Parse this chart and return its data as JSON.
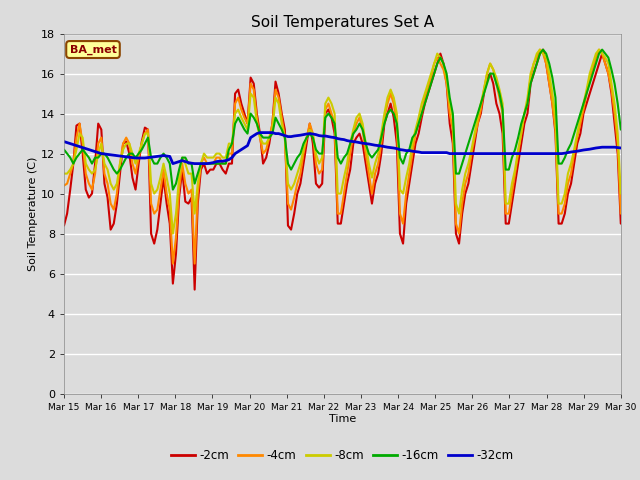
{
  "title": "Soil Temperatures Set A",
  "xlabel": "Time",
  "ylabel": "Soil Temperature (C)",
  "ylim": [
    0,
    18
  ],
  "yticks": [
    0,
    2,
    4,
    6,
    8,
    10,
    12,
    14,
    16,
    18
  ],
  "station_label": "BA_met",
  "bg_color": "#dcdcdc",
  "legend_labels": [
    "-2cm",
    "-4cm",
    "-8cm",
    "-16cm",
    "-32cm"
  ],
  "legend_colors": [
    "#cc0000",
    "#ff8800",
    "#cccc00",
    "#00aa00",
    "#0000cc"
  ],
  "line_widths": [
    1.5,
    1.5,
    1.5,
    1.5,
    2.0
  ],
  "xtick_labels": [
    "Mar 15",
    "Mar 16",
    "Mar 17",
    "Mar 18",
    "Mar 19",
    "Mar 20",
    "Mar 21",
    "Mar 22",
    "Mar 23",
    "Mar 24",
    "Mar 25",
    "Mar 26",
    "Mar 27",
    "Mar 28",
    "Mar 29",
    "Mar 30"
  ],
  "series_2cm": [
    8.4,
    9.0,
    10.2,
    11.5,
    13.4,
    13.5,
    12.0,
    10.2,
    9.8,
    10.0,
    11.5,
    13.5,
    13.2,
    10.5,
    9.8,
    8.2,
    8.5,
    9.5,
    11.0,
    12.5,
    12.6,
    12.0,
    10.8,
    10.2,
    11.5,
    12.6,
    13.3,
    13.2,
    8.0,
    7.5,
    8.2,
    9.5,
    10.8,
    9.5,
    8.5,
    5.5,
    7.0,
    9.8,
    11.2,
    9.6,
    9.5,
    9.8,
    5.2,
    9.5,
    11.2,
    11.5,
    11.0,
    11.2,
    11.2,
    11.5,
    11.5,
    11.2,
    11.0,
    11.5,
    11.5,
    15.0,
    15.2,
    14.5,
    14.0,
    13.5,
    15.8,
    15.5,
    14.0,
    13.0,
    11.5,
    11.8,
    12.5,
    13.5,
    15.6,
    15.0,
    14.0,
    13.2,
    8.4,
    8.2,
    9.0,
    10.0,
    10.5,
    11.5,
    12.5,
    13.5,
    12.5,
    10.5,
    10.3,
    10.5,
    14.0,
    14.2,
    13.8,
    13.0,
    8.5,
    8.5,
    9.5,
    10.5,
    11.2,
    12.5,
    12.8,
    13.0,
    12.5,
    11.5,
    10.5,
    9.5,
    10.5,
    11.0,
    12.0,
    13.5,
    14.0,
    14.5,
    13.8,
    12.5,
    8.0,
    7.5,
    9.5,
    10.5,
    11.5,
    12.5,
    13.0,
    13.8,
    14.5,
    15.0,
    15.5,
    16.0,
    16.5,
    17.0,
    16.5,
    15.5,
    13.5,
    12.5,
    8.0,
    7.5,
    9.0,
    10.0,
    10.5,
    11.5,
    12.5,
    13.5,
    14.0,
    15.0,
    15.8,
    16.0,
    15.5,
    14.5,
    14.0,
    13.0,
    8.5,
    8.5,
    9.5,
    10.5,
    11.5,
    12.5,
    13.5,
    14.0,
    15.5,
    16.0,
    16.5,
    17.0,
    17.2,
    16.5,
    15.5,
    14.5,
    13.0,
    8.5,
    8.5,
    9.0,
    10.0,
    10.5,
    11.5,
    12.5,
    13.0,
    14.0,
    14.5,
    15.0,
    15.5,
    16.0,
    16.5,
    17.0,
    16.5,
    16.0,
    15.0,
    13.5,
    12.0,
    8.5
  ],
  "series_4cm": [
    10.4,
    10.5,
    11.0,
    11.5,
    12.8,
    13.5,
    12.5,
    11.0,
    10.5,
    10.2,
    11.0,
    12.5,
    12.8,
    11.0,
    10.5,
    9.5,
    9.2,
    10.0,
    11.5,
    12.5,
    12.8,
    12.5,
    11.5,
    11.0,
    11.8,
    12.5,
    13.0,
    13.2,
    9.5,
    9.0,
    9.2,
    10.2,
    11.2,
    10.0,
    9.2,
    6.5,
    7.8,
    10.2,
    11.5,
    10.5,
    10.0,
    10.2,
    6.5,
    10.0,
    11.5,
    11.8,
    11.5,
    11.5,
    11.5,
    11.8,
    11.8,
    11.5,
    11.5,
    12.0,
    12.0,
    14.5,
    14.8,
    14.2,
    13.8,
    13.5,
    15.5,
    15.2,
    13.8,
    12.8,
    12.0,
    12.2,
    12.8,
    13.5,
    15.2,
    14.8,
    13.8,
    12.8,
    9.5,
    9.2,
    9.8,
    10.5,
    11.0,
    12.0,
    12.8,
    13.5,
    13.0,
    11.5,
    11.0,
    11.2,
    14.2,
    14.5,
    14.0,
    13.5,
    9.0,
    9.0,
    10.0,
    11.0,
    12.0,
    13.0,
    13.5,
    13.8,
    13.2,
    12.0,
    11.0,
    10.0,
    11.0,
    11.5,
    12.5,
    13.8,
    14.5,
    15.0,
    14.5,
    13.5,
    9.0,
    8.5,
    10.0,
    11.0,
    12.0,
    13.0,
    13.5,
    14.0,
    14.8,
    15.2,
    15.8,
    16.5,
    16.8,
    16.5,
    16.2,
    15.5,
    14.0,
    13.2,
    8.5,
    8.0,
    9.5,
    10.5,
    11.0,
    12.0,
    12.8,
    13.5,
    14.2,
    15.2,
    16.0,
    16.5,
    16.2,
    15.5,
    14.8,
    14.0,
    9.0,
    9.0,
    10.0,
    11.0,
    12.0,
    13.0,
    14.0,
    14.5,
    15.8,
    16.5,
    16.8,
    17.2,
    17.0,
    16.5,
    15.5,
    14.5,
    13.2,
    9.0,
    9.0,
    9.5,
    10.5,
    11.0,
    12.0,
    12.8,
    13.5,
    14.2,
    15.0,
    15.8,
    16.2,
    16.8,
    17.2,
    17.0,
    16.5,
    16.0,
    15.2,
    14.0,
    12.5,
    9.0
  ],
  "series_8cm": [
    11.0,
    11.0,
    11.2,
    11.5,
    12.2,
    13.0,
    12.8,
    11.5,
    11.2,
    11.0,
    11.2,
    12.0,
    12.5,
    11.5,
    11.2,
    10.5,
    10.2,
    10.5,
    11.5,
    12.2,
    12.5,
    12.5,
    12.0,
    11.5,
    12.0,
    12.5,
    13.0,
    13.0,
    10.5,
    10.0,
    10.2,
    10.8,
    11.5,
    10.8,
    10.0,
    8.0,
    9.0,
    10.8,
    11.8,
    11.5,
    11.0,
    11.0,
    9.0,
    10.5,
    11.5,
    12.0,
    11.8,
    11.8,
    11.8,
    12.0,
    12.0,
    11.8,
    11.8,
    12.5,
    12.5,
    14.0,
    14.2,
    13.8,
    13.5,
    13.2,
    15.0,
    14.8,
    13.5,
    12.8,
    12.5,
    12.5,
    12.8,
    13.2,
    14.8,
    14.5,
    13.5,
    12.8,
    10.5,
    10.2,
    10.5,
    11.0,
    11.5,
    12.2,
    12.8,
    13.2,
    13.0,
    12.0,
    11.5,
    11.8,
    14.5,
    14.8,
    14.5,
    14.0,
    10.0,
    10.0,
    10.8,
    11.5,
    12.5,
    13.2,
    13.8,
    14.0,
    13.5,
    12.5,
    11.5,
    10.8,
    11.5,
    12.0,
    13.0,
    14.0,
    14.8,
    15.2,
    14.8,
    14.0,
    10.2,
    10.0,
    10.8,
    11.5,
    12.5,
    13.2,
    13.8,
    14.5,
    15.0,
    15.5,
    16.0,
    16.5,
    17.0,
    16.8,
    16.5,
    15.8,
    14.5,
    13.8,
    9.5,
    9.0,
    10.2,
    11.0,
    11.5,
    12.2,
    13.0,
    13.8,
    14.5,
    15.2,
    16.0,
    16.5,
    16.2,
    15.8,
    15.2,
    14.5,
    9.5,
    9.5,
    10.5,
    11.2,
    12.2,
    13.0,
    14.0,
    14.8,
    16.0,
    16.5,
    17.0,
    17.2,
    17.0,
    16.8,
    16.0,
    15.0,
    13.8,
    9.5,
    9.5,
    10.0,
    11.0,
    11.5,
    12.2,
    13.0,
    13.8,
    14.5,
    15.2,
    16.0,
    16.5,
    17.0,
    17.2,
    17.0,
    16.8,
    16.5,
    15.5,
    14.5,
    13.0,
    10.0
  ],
  "series_16cm": [
    12.2,
    12.0,
    11.8,
    11.5,
    11.8,
    12.0,
    12.2,
    12.0,
    11.8,
    11.5,
    11.8,
    11.8,
    12.0,
    12.0,
    11.8,
    11.5,
    11.2,
    11.0,
    11.2,
    11.5,
    11.8,
    12.0,
    12.0,
    11.8,
    12.0,
    12.2,
    12.5,
    12.8,
    11.8,
    11.5,
    11.5,
    11.8,
    12.0,
    11.8,
    11.5,
    10.2,
    10.5,
    11.2,
    11.8,
    11.8,
    11.5,
    11.5,
    10.5,
    11.0,
    11.5,
    11.5,
    11.5,
    11.5,
    11.5,
    11.5,
    11.5,
    11.5,
    11.5,
    12.2,
    12.5,
    13.5,
    13.8,
    13.5,
    13.2,
    13.0,
    14.0,
    13.8,
    13.5,
    13.0,
    12.8,
    12.8,
    12.8,
    13.0,
    13.8,
    13.5,
    13.2,
    12.8,
    11.5,
    11.2,
    11.5,
    11.8,
    12.0,
    12.5,
    12.8,
    13.0,
    12.8,
    12.2,
    12.0,
    12.0,
    13.8,
    14.0,
    13.8,
    13.5,
    11.8,
    11.5,
    11.8,
    12.0,
    12.5,
    13.0,
    13.2,
    13.5,
    13.2,
    12.5,
    12.0,
    11.8,
    12.0,
    12.2,
    12.8,
    13.5,
    14.0,
    14.2,
    14.0,
    13.5,
    11.8,
    11.5,
    12.0,
    12.2,
    12.8,
    13.0,
    13.5,
    14.0,
    14.5,
    15.0,
    15.5,
    16.0,
    16.5,
    16.8,
    16.5,
    16.0,
    14.8,
    14.0,
    11.0,
    11.0,
    11.5,
    12.0,
    12.5,
    13.0,
    13.5,
    14.0,
    14.5,
    15.0,
    15.5,
    16.0,
    16.0,
    15.5,
    15.0,
    14.2,
    11.2,
    11.2,
    11.8,
    12.2,
    12.8,
    13.5,
    14.0,
    14.5,
    15.5,
    16.0,
    16.5,
    17.0,
    17.2,
    17.0,
    16.5,
    15.8,
    14.8,
    11.5,
    11.5,
    11.8,
    12.2,
    12.5,
    13.0,
    13.5,
    14.0,
    14.5,
    15.0,
    15.5,
    16.0,
    16.5,
    17.0,
    17.2,
    17.0,
    16.8,
    16.2,
    15.5,
    14.5,
    13.2
  ],
  "series_32cm": [
    12.6,
    12.55,
    12.5,
    12.45,
    12.4,
    12.35,
    12.3,
    12.25,
    12.2,
    12.15,
    12.1,
    12.05,
    12.0,
    11.98,
    11.96,
    11.94,
    11.92,
    11.9,
    11.88,
    11.86,
    11.84,
    11.82,
    11.8,
    11.78,
    11.78,
    11.78,
    11.78,
    11.8,
    11.82,
    11.84,
    11.86,
    11.88,
    11.9,
    11.88,
    11.86,
    11.5,
    11.55,
    11.6,
    11.65,
    11.6,
    11.55,
    11.52,
    11.5,
    11.5,
    11.5,
    11.5,
    11.5,
    11.52,
    11.55,
    11.6,
    11.62,
    11.62,
    11.65,
    11.7,
    11.8,
    12.0,
    12.1,
    12.2,
    12.3,
    12.4,
    12.8,
    12.9,
    13.0,
    13.05,
    13.05,
    13.05,
    13.05,
    13.05,
    13.0,
    13.0,
    12.95,
    12.9,
    12.85,
    12.85,
    12.88,
    12.9,
    12.92,
    12.95,
    12.98,
    13.0,
    12.98,
    12.95,
    12.9,
    12.88,
    12.88,
    12.85,
    12.82,
    12.8,
    12.75,
    12.72,
    12.7,
    12.65,
    12.62,
    12.6,
    12.58,
    12.55,
    12.52,
    12.5,
    12.48,
    12.45,
    12.42,
    12.4,
    12.38,
    12.35,
    12.32,
    12.3,
    12.28,
    12.25,
    12.2,
    12.18,
    12.15,
    12.15,
    12.12,
    12.1,
    12.08,
    12.05,
    12.05,
    12.05,
    12.05,
    12.05,
    12.05,
    12.05,
    12.05,
    12.05,
    12.0,
    12.0,
    12.0,
    12.0,
    12.0,
    12.0,
    12.0,
    12.0,
    12.0,
    12.0,
    12.0,
    12.0,
    12.0,
    12.0,
    12.0,
    12.0,
    12.0,
    12.0,
    12.0,
    12.0,
    12.0,
    12.0,
    12.0,
    12.0,
    12.0,
    12.0,
    12.0,
    12.0,
    12.0,
    12.0,
    12.0,
    12.0,
    12.0,
    12.0,
    12.0,
    12.0,
    12.0,
    12.02,
    12.05,
    12.08,
    12.1,
    12.12,
    12.15,
    12.18,
    12.2,
    12.22,
    12.25,
    12.28,
    12.3,
    12.32,
    12.32,
    12.32,
    12.32,
    12.32,
    12.3,
    12.28
  ]
}
